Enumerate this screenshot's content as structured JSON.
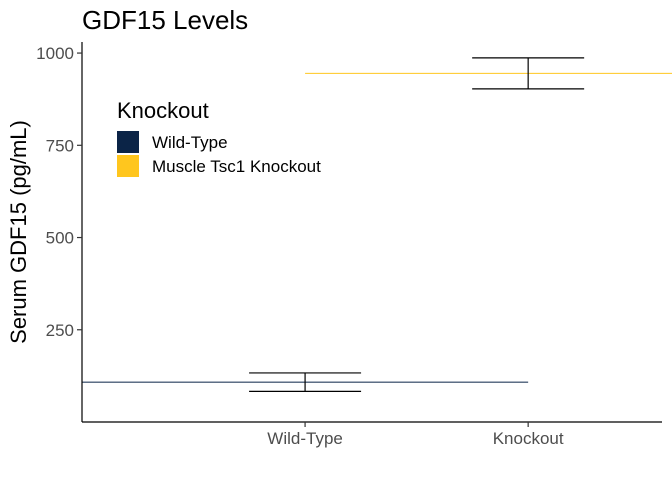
{
  "chart_data": {
    "type": "bar",
    "title": "GDF15 Levels",
    "xlabel": "",
    "ylabel": "Serum GDF15 (pg/mL)",
    "categories": [
      "Wild-Type",
      "Knockout"
    ],
    "ylim": [
      0,
      1030
    ],
    "yticks": [
      250,
      500,
      750,
      1000
    ],
    "grid": false,
    "legend": {
      "title": "Knockout",
      "position": "top-left",
      "entries": [
        {
          "label": "Wild-Type",
          "color": "#0b2447"
        },
        {
          "label": "Muscle Tsc1 Knockout",
          "color": "#ffc61e"
        }
      ]
    },
    "series": [
      {
        "category": "Wild-Type",
        "value": 108,
        "error_low": 83,
        "error_high": 133,
        "color": "#0b2447"
      },
      {
        "category": "Knockout",
        "value": 945,
        "error_low": 903,
        "error_high": 987,
        "color": "#ffc61e"
      }
    ]
  }
}
